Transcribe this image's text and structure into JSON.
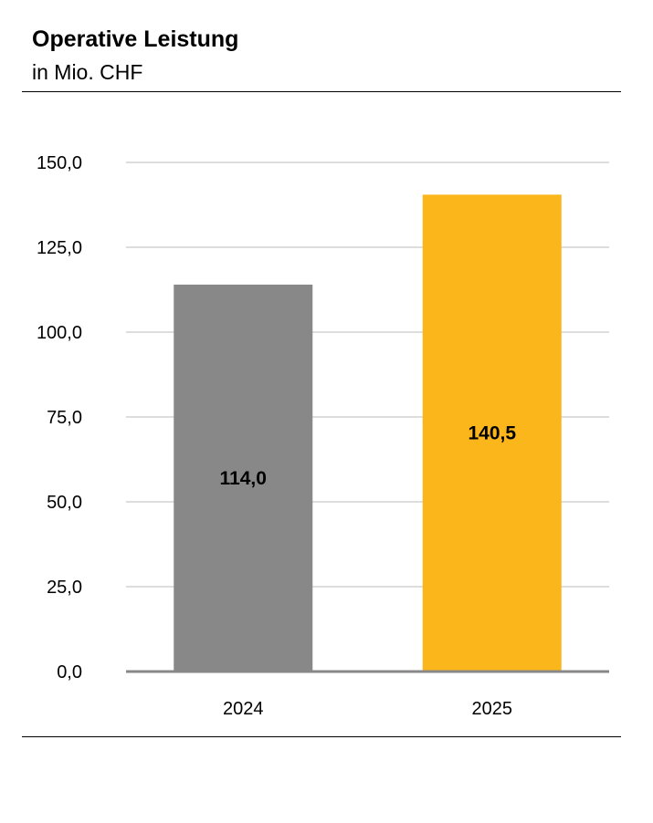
{
  "header": {
    "title": "Operative Leistung",
    "subtitle": "in Mio. CHF"
  },
  "chart_data": {
    "type": "bar",
    "title": "Operative Leistung",
    "subtitle": "in Mio. CHF",
    "categories": [
      "2024",
      "2025"
    ],
    "values": [
      114.0,
      140.5
    ],
    "value_labels": [
      "114,0",
      "140,5"
    ],
    "bar_colors": [
      "#888888",
      "#fbb61c"
    ],
    "ylim": [
      0,
      150
    ],
    "yticks": [
      0,
      25,
      50,
      75,
      100,
      125,
      150
    ],
    "ytick_labels": [
      "0,0",
      "25,0",
      "50,0",
      "75,0",
      "100,0",
      "125,0",
      "150,0"
    ],
    "xlabel": "",
    "ylabel": "",
    "grid": true,
    "legend": "none"
  }
}
